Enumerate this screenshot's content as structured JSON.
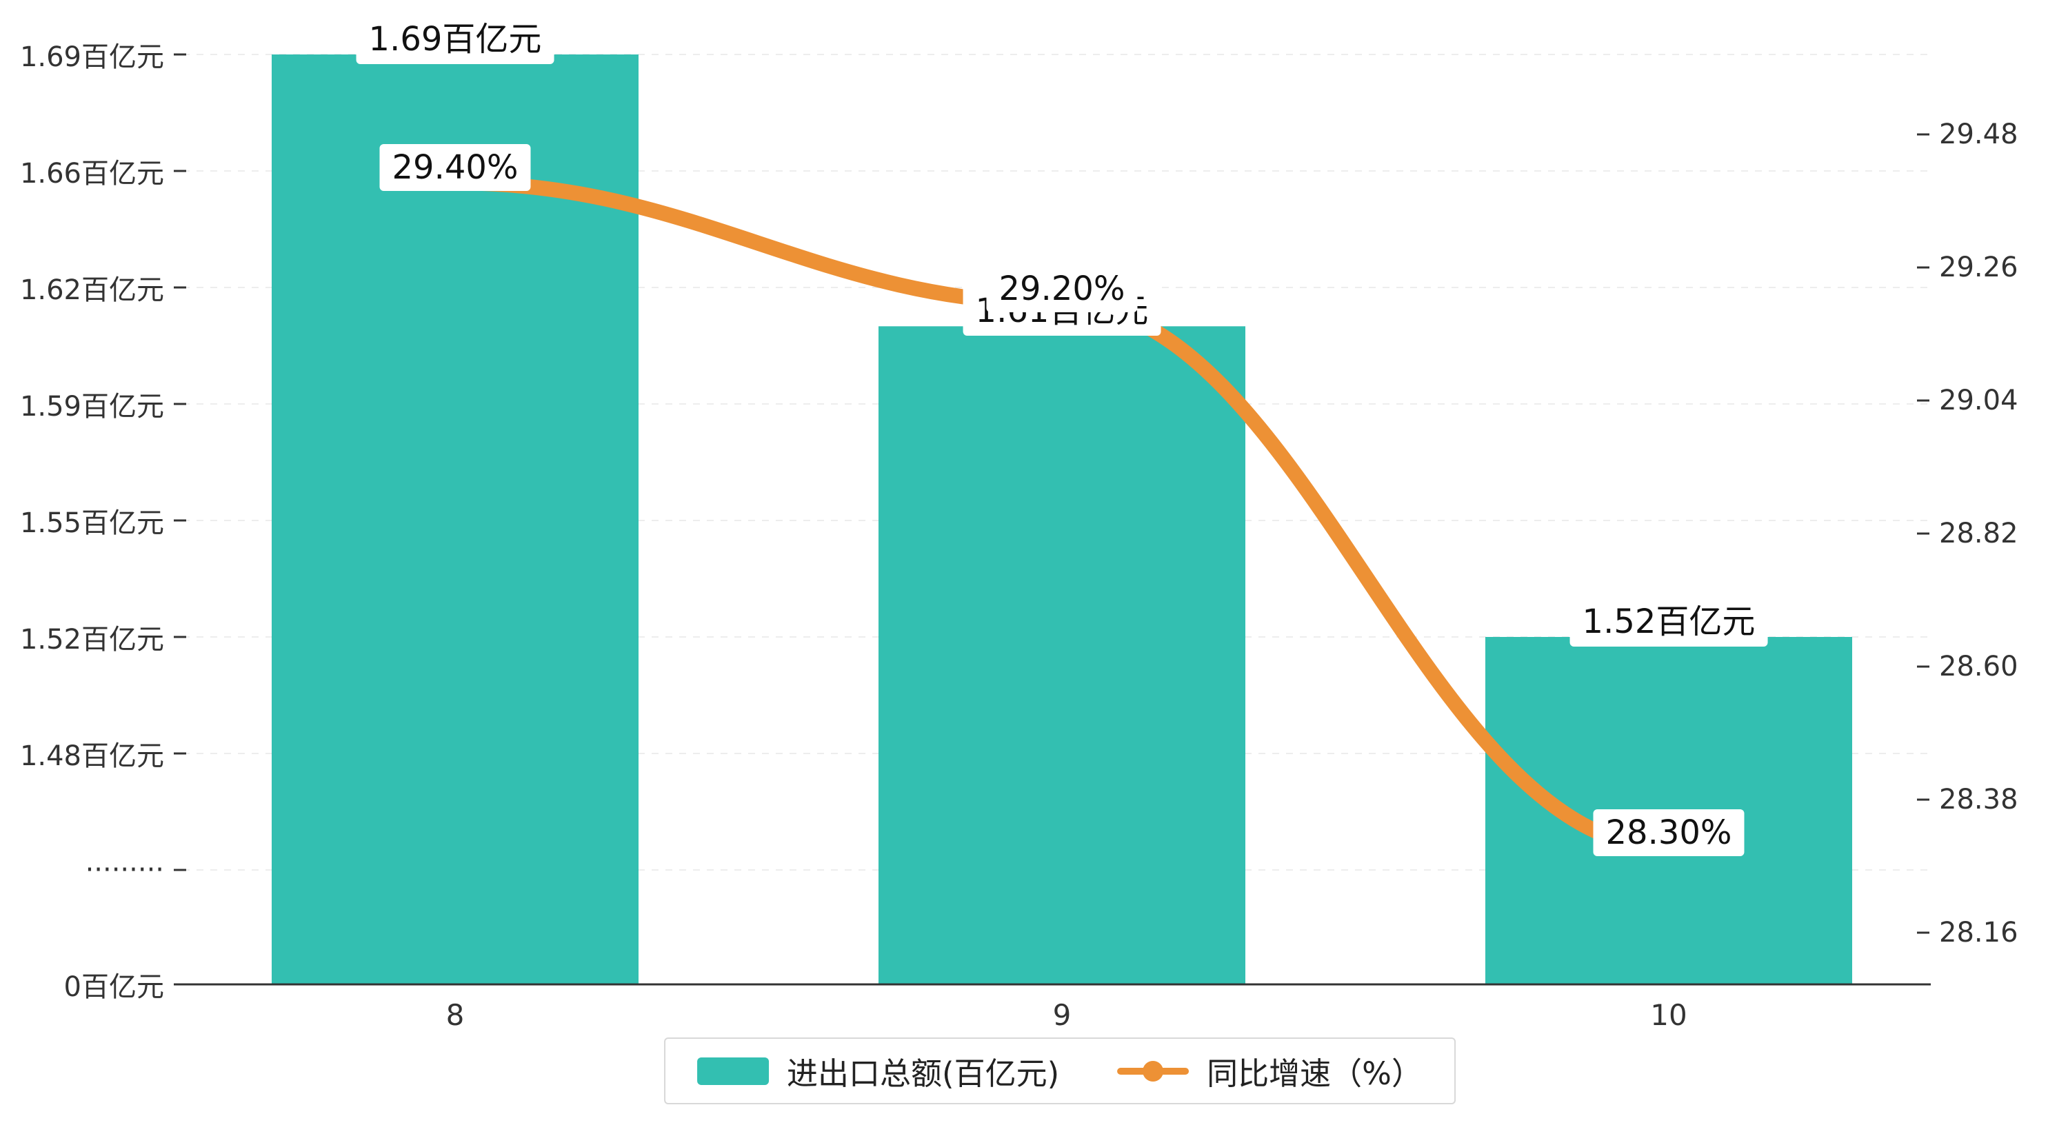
{
  "chart_data": {
    "type": "bar+line",
    "categories": [
      "8",
      "9",
      "10"
    ],
    "series": [
      {
        "name": "进出口总额(百亿元)",
        "type": "bar",
        "unit": "百亿元",
        "values": [
          1.69,
          1.61,
          1.52
        ],
        "data_labels": [
          "1.69百亿元",
          "1.61百亿元",
          "1.52百亿元"
        ],
        "color": "#33bfb1"
      },
      {
        "name": "同比增速（%）",
        "type": "line",
        "unit": "%",
        "values": [
          29.4,
          29.2,
          28.3
        ],
        "data_labels": [
          "29.40%",
          "29.20%",
          "28.30%"
        ],
        "color": "#ed9135"
      }
    ],
    "left_axis": {
      "tick_labels": [
        "1.69百亿元",
        "1.66百亿元",
        "1.62百亿元",
        "1.59百亿元",
        "1.55百亿元",
        "1.52百亿元",
        "1.48百亿元",
        "·········",
        "0百亿元"
      ],
      "tick_values": [
        1.69,
        1.66,
        1.62,
        1.59,
        1.55,
        1.52,
        1.48
      ],
      "broken_axis": true
    },
    "right_axis": {
      "tick_labels": [
        "29.48",
        "29.26",
        "29.04",
        "28.82",
        "28.60",
        "28.38",
        "28.16"
      ],
      "max": 29.48,
      "min": 28.16,
      "step": 0.22
    },
    "x_axis": {
      "tick_labels": [
        "8",
        "9",
        "10"
      ]
    },
    "legend": {
      "position": "bottom-center",
      "items": [
        {
          "label": "进出口总额(百亿元)",
          "marker": "bar"
        },
        {
          "label": "同比增速（%）",
          "marker": "line-dot"
        }
      ]
    },
    "grid": true,
    "colors": {
      "bar": "#33bfb1",
      "line": "#ed9135",
      "axis": "#333333",
      "gridline": "#ededed",
      "label_bg": "#ffffff",
      "text": "#333333"
    }
  }
}
